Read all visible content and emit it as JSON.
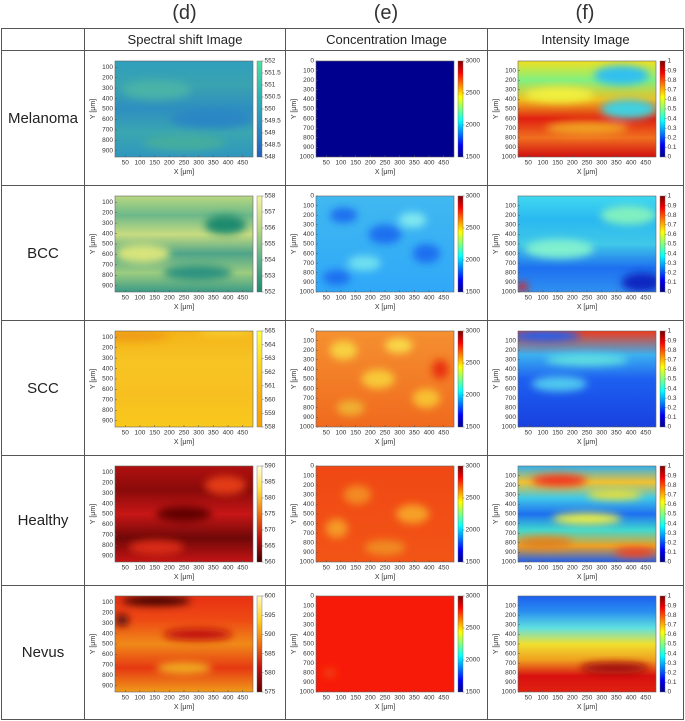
{
  "columns": [
    {
      "letter": "(d)",
      "title": "Spectral shift Image",
      "x_label": "X [μm]",
      "y_label": "Y [μm]",
      "xlim": [
        15,
        485
      ],
      "x_ticks": [
        50,
        100,
        150,
        200,
        250,
        300,
        350,
        400,
        450
      ],
      "ylim": [
        40,
        960
      ],
      "y_ticks": [
        100,
        200,
        300,
        400,
        500,
        600,
        700,
        800,
        900
      ]
    },
    {
      "letter": "(e)",
      "title": "Concentration Image",
      "x_label": "X [μm]",
      "y_label": "Y [μm]",
      "xlim": [
        15,
        485
      ],
      "x_ticks": [
        50,
        100,
        150,
        200,
        250,
        300,
        350,
        400,
        450
      ],
      "ylim": [
        0,
        1000
      ],
      "y_ticks": [
        0,
        100,
        200,
        300,
        400,
        500,
        600,
        700,
        800,
        900,
        1000
      ],
      "colorbar_ticks": [
        3000,
        2500,
        2000,
        1500
      ]
    },
    {
      "letter": "(f)",
      "title": "Intensity Image",
      "x_label": "X [μm]",
      "y_label": "Y [μm]",
      "xlim": [
        15,
        485
      ],
      "x_ticks": [
        50,
        100,
        150,
        200,
        250,
        300,
        350,
        400,
        450
      ],
      "ylim": [
        0,
        1000
      ],
      "y_ticks": [
        100,
        200,
        300,
        400,
        500,
        600,
        700,
        800,
        900,
        1000
      ],
      "colorbar_ticks": [
        1,
        0.9,
        0.8,
        0.7,
        0.6,
        0.5,
        0.4,
        0.3,
        0.2,
        0.1,
        0
      ]
    }
  ],
  "rows": [
    {
      "label": "Melanoma",
      "spectral_colorbar_ticks": [
        552,
        551.5,
        551,
        550.5,
        550,
        549.5,
        549,
        548.5,
        548
      ]
    },
    {
      "label": "BCC",
      "spectral_colorbar_ticks": [
        558,
        557,
        556,
        555,
        554,
        553,
        552
      ]
    },
    {
      "label": "SCC",
      "spectral_colorbar_ticks": [
        565,
        564,
        563,
        562,
        561,
        560,
        559,
        558
      ]
    },
    {
      "label": "Healthy",
      "spectral_colorbar_ticks": [
        590,
        585,
        580,
        575,
        570,
        565,
        560
      ]
    },
    {
      "label": "Nevus",
      "spectral_colorbar_ticks": [
        600,
        595,
        590,
        585,
        580,
        575
      ]
    }
  ]
}
